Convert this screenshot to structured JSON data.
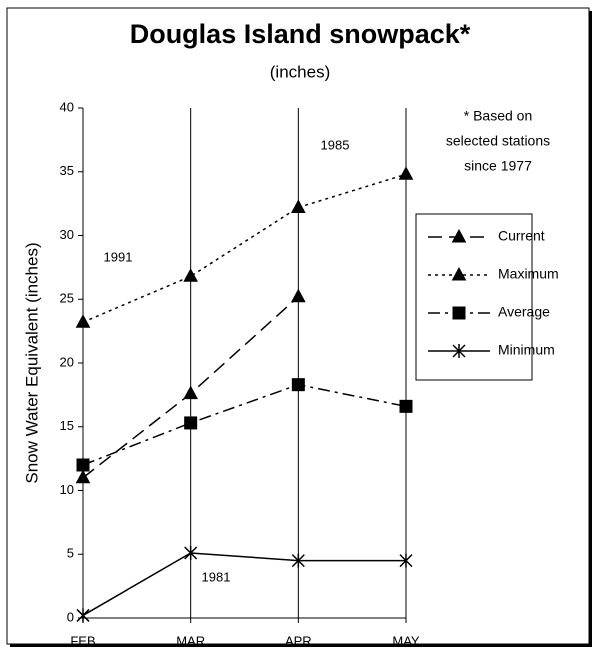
{
  "chart_data": {
    "type": "line",
    "title": "Douglas Island snowpack*",
    "subtitle": "(inches)",
    "y_label": "Snow Water Equivalent (inches)",
    "categories": [
      "FEB",
      "MAR",
      "APR",
      "MAY"
    ],
    "series": [
      {
        "name": "Current",
        "color": "#000000",
        "dash": "long-dash",
        "marker": "triangle",
        "values": [
          11,
          17.6,
          25.2,
          null
        ]
      },
      {
        "name": "Maximum",
        "color": "#000000",
        "dash": "dotted",
        "marker": "triangle",
        "values": [
          23.2,
          26.8,
          32.2,
          34.8
        ]
      },
      {
        "name": "Average",
        "color": "#000000",
        "dash": "dash-dot",
        "marker": "square",
        "values": [
          12,
          15.3,
          18.3,
          16.6
        ]
      },
      {
        "name": "Minimum",
        "color": "#000000",
        "dash": "solid",
        "marker": "star",
        "values": [
          0.2,
          5.1,
          4.5,
          4.5
        ]
      }
    ],
    "annotations": [
      "1991",
      "1985",
      "1981"
    ],
    "note": [
      "* Based on",
      "selected stations",
      "since 1977"
    ],
    "ylim": [
      0,
      40
    ],
    "yticks": [
      0,
      5,
      10,
      15,
      20,
      25,
      30,
      35,
      40
    ],
    "grid": "x",
    "legend": "right"
  }
}
